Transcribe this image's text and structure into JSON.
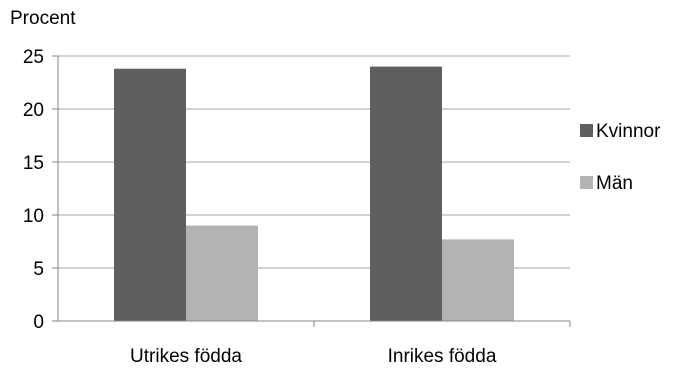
{
  "chart_data": {
    "type": "bar",
    "ylabel": "Procent",
    "categories": [
      "Utrikes födda",
      "Inrikes födda"
    ],
    "series": [
      {
        "name": "Kvinnor",
        "values": [
          23.8,
          24.0
        ],
        "color": "#5f5f5f"
      },
      {
        "name": "Män",
        "values": [
          9.0,
          7.7
        ],
        "color": "#b3b3b3"
      }
    ],
    "ylim": [
      0,
      25
    ],
    "yticks": [
      0,
      5,
      10,
      15,
      20,
      25
    ],
    "grid": true,
    "legend": "right",
    "gridline_color": "#a6a6a6",
    "axis_color": "#868686"
  }
}
